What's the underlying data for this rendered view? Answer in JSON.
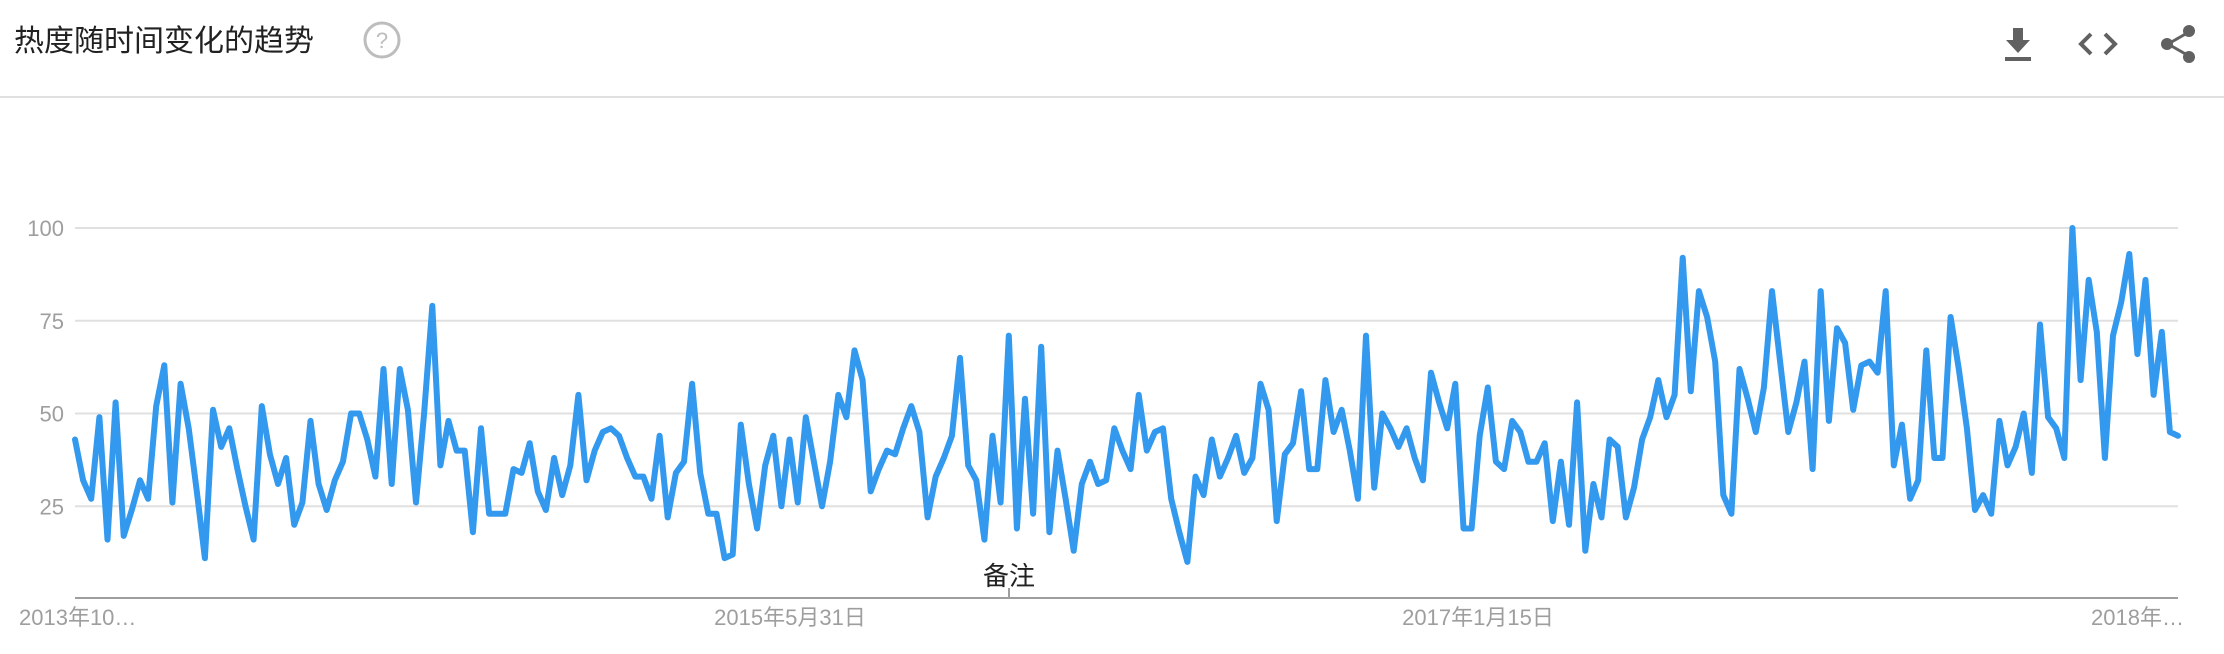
{
  "header": {
    "title": "热度随时间变化的趋势",
    "help_icon": "help-circle-icon",
    "actions": [
      {
        "name": "download",
        "icon": "download-icon"
      },
      {
        "name": "embed",
        "icon": "code-icon"
      },
      {
        "name": "share",
        "icon": "share-icon"
      }
    ]
  },
  "colors": {
    "series": "#3399ee",
    "grid": "#e0e0e0",
    "tick_text": "#9e9e9e",
    "axis": "#9e9e9e"
  },
  "chart_data": {
    "type": "line",
    "y_ticks": [
      25,
      50,
      75,
      100
    ],
    "ylim": [
      0,
      100
    ],
    "x_tick_labels": [
      "2013年10…",
      "2015年5月31日",
      "2017年1月15日",
      "2018年…"
    ],
    "annotation": "备注",
    "grid": true,
    "series": [
      {
        "values": [
          43,
          32,
          27,
          49,
          16,
          53,
          17,
          24,
          32,
          27,
          52,
          63,
          26,
          58,
          46,
          29,
          11,
          51,
          41,
          46,
          35,
          25,
          16,
          52,
          39,
          31,
          38,
          20,
          26,
          48,
          31,
          24,
          32,
          37,
          50,
          50,
          43,
          33,
          62,
          31,
          62,
          51,
          26,
          50,
          79,
          36,
          48,
          40,
          40,
          18,
          46,
          23,
          23,
          23,
          35,
          34,
          42,
          29,
          24,
          38,
          28,
          36,
          55,
          32,
          40,
          45,
          46,
          44,
          38,
          33,
          33,
          27,
          44,
          22,
          34,
          37,
          58,
          34,
          23,
          23,
          11,
          12,
          47,
          31,
          19,
          36,
          44,
          25,
          43,
          26,
          49,
          37,
          25,
          37,
          55,
          49,
          67,
          59,
          29,
          35,
          40,
          39,
          46,
          52,
          45,
          22,
          33,
          38,
          44,
          65,
          36,
          32,
          16,
          44,
          26,
          71,
          19,
          54,
          23,
          68,
          18,
          40,
          27,
          13,
          31,
          37,
          31,
          32,
          46,
          40,
          35,
          55,
          40,
          45,
          46,
          27,
          18,
          10,
          33,
          28,
          43,
          33,
          38,
          44,
          34,
          38,
          58,
          51,
          21,
          39,
          42,
          56,
          35,
          35,
          59,
          45,
          51,
          40,
          27,
          71,
          30,
          50,
          46,
          41,
          46,
          38,
          32,
          61,
          53,
          46,
          58,
          19,
          19,
          44,
          57,
          37,
          35,
          48,
          45,
          37,
          37,
          42,
          21,
          37,
          20,
          53,
          13,
          31,
          22,
          43,
          41,
          22,
          30,
          43,
          49,
          59,
          49,
          55,
          92,
          56,
          83,
          76,
          64,
          28,
          23,
          62,
          54,
          45,
          57,
          83,
          64,
          45,
          53,
          64,
          35,
          83,
          48,
          73,
          69,
          51,
          63,
          64,
          61,
          83,
          36,
          47,
          27,
          32,
          67,
          38,
          38,
          76,
          62,
          46,
          24,
          28,
          23,
          48,
          36,
          41,
          50,
          34,
          74,
          49,
          46,
          38,
          100,
          59,
          86,
          72,
          38,
          71,
          80,
          93,
          66,
          86,
          55,
          72,
          45,
          44
        ]
      }
    ]
  }
}
